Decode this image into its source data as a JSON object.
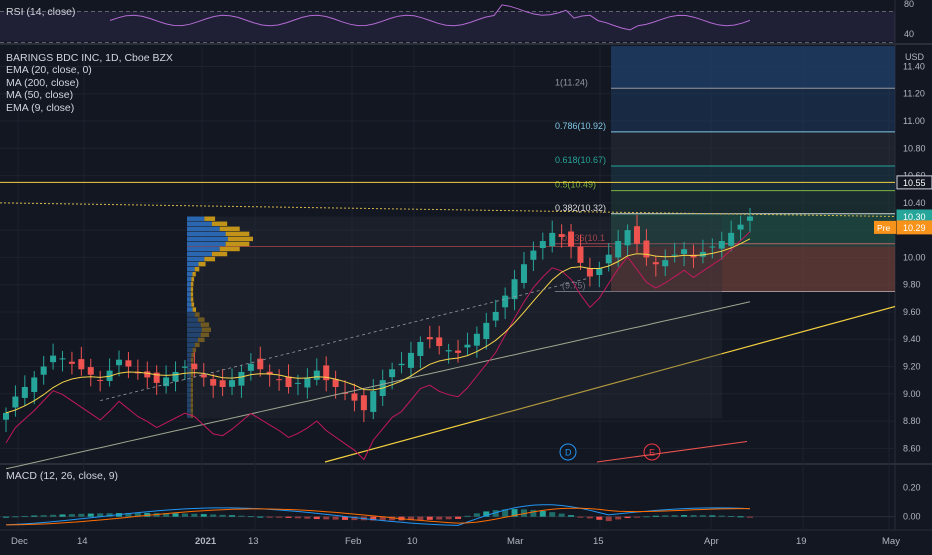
{
  "symbol": {
    "name": "BARINGS BDC INC",
    "interval": "1D",
    "exchange": "Cboe BZX",
    "title": "BARINGS BDC INC, 1D, Cboe BZX"
  },
  "indicators": [
    "EMA (20, close, 0)",
    "MA (200, close)",
    "MA (50, close)",
    "EMA (9, close)"
  ],
  "rsi": {
    "label": "RSI (14, close)",
    "ticks": [
      "80",
      "40"
    ],
    "line_color": "#b36bd3"
  },
  "macd": {
    "label": "MACD (12, 26, close, 9)",
    "ticks": [
      "0.20",
      "0.00"
    ],
    "macd_color": "#2196f3",
    "signal_color": "#ff6d00"
  },
  "price_axis": {
    "currency": "USD",
    "ticks": [
      "11.40",
      "11.20",
      "11.00",
      "10.80",
      "10.60",
      "10.40",
      "10.20",
      "10.00",
      "9.80",
      "9.60",
      "9.40",
      "9.20",
      "9.00",
      "8.80",
      "8.60"
    ]
  },
  "price_tags": [
    {
      "value": "10.55",
      "color": "#ffffff",
      "bg": "#131722",
      "border": "#d1d4dc"
    },
    {
      "value": "10.30",
      "color": "#ffffff",
      "bg": "#26a69a",
      "border": "#26a69a"
    },
    {
      "label": "Pre",
      "value": "10.29",
      "color": "#ffffff",
      "bg": "#f7931a",
      "border": "#f7931a"
    }
  ],
  "time_axis": [
    "Dec",
    "14",
    "2021",
    "13",
    "Feb",
    "10",
    "Mar",
    "15",
    "Apr",
    "19",
    "May"
  ],
  "fib_levels": [
    {
      "label": "1(11.24)",
      "price": 11.24,
      "color": "#9598a1"
    },
    {
      "label": "0.786(10.92)",
      "price": 10.92,
      "color": "#81c8e6"
    },
    {
      "label": "0.618(10.67)",
      "price": 10.67,
      "color": "#26a69a"
    },
    {
      "label": "0.5(10.49)",
      "price": 10.49,
      "color": "#7cb342"
    },
    {
      "label": "0.382(10.32)",
      "price": 10.32,
      "color": "#dbdbdb"
    },
    {
      "label": "0.236(10.1",
      "price": 10.1,
      "color": "#e0525b"
    },
    {
      "label": "(9.75)",
      "price": 9.75,
      "color": "#9598a1"
    }
  ],
  "events": [
    {
      "label": "D",
      "color": "#2196f3"
    },
    {
      "label": "E",
      "color": "#f23645"
    }
  ],
  "colors": {
    "up": "#26a69a",
    "down": "#ef5350",
    "ema20": "#f7d44a",
    "ma200": "#9ea58f",
    "ma50": "#c2185b",
    "trend": "#f4d03f",
    "vp_up": "#2d6fbf",
    "vp_down": "#d4a017"
  },
  "chart_data": {
    "type": "candlestick",
    "title": "BARINGS BDC INC, 1D, Cboe BZX",
    "ylim": [
      8.5,
      11.55
    ],
    "x": [
      "Dec",
      "14",
      "2021",
      "13",
      "Feb",
      "10",
      "Mar",
      "15",
      "Apr",
      "19",
      "May"
    ],
    "close_series": [
      8.86,
      8.98,
      9.05,
      9.12,
      9.2,
      9.28,
      9.26,
      9.22,
      9.18,
      9.14,
      9.1,
      9.17,
      9.25,
      9.2,
      9.15,
      9.12,
      9.08,
      9.12,
      9.16,
      9.2,
      9.18,
      9.12,
      9.06,
      9.05,
      9.1,
      9.16,
      9.22,
      9.18,
      9.14,
      9.1,
      9.05,
      9.08,
      9.12,
      9.17,
      9.1,
      9.05,
      9.0,
      8.95,
      8.88,
      9.02,
      9.1,
      9.18,
      9.22,
      9.3,
      9.38,
      9.4,
      9.35,
      9.32,
      9.3,
      9.36,
      9.44,
      9.52,
      9.6,
      9.72,
      9.84,
      9.95,
      10.05,
      10.12,
      10.18,
      10.15,
      10.08,
      9.96,
      9.86,
      9.92,
      10.02,
      10.12,
      10.2,
      10.1,
      10.0,
      9.95,
      9.98,
      10.02,
      10.06,
      10.0,
      10.04,
      10.08,
      10.12,
      10.18,
      10.24,
      10.3
    ],
    "ema20_last": 10.15,
    "ma50_last": 10.05,
    "ma200_last": 9.7,
    "rsi_range": [
      40,
      80
    ],
    "macd_range": [
      -0.05,
      0.25
    ],
    "fib_ratios": [
      1,
      0.786,
      0.618,
      0.5,
      0.382,
      0.236,
      0
    ],
    "fib_prices": [
      11.24,
      10.92,
      10.67,
      10.49,
      10.32,
      10.1,
      9.75
    ],
    "last_close": 10.3,
    "premarket": 10.29,
    "horizontal_level": 10.55
  }
}
